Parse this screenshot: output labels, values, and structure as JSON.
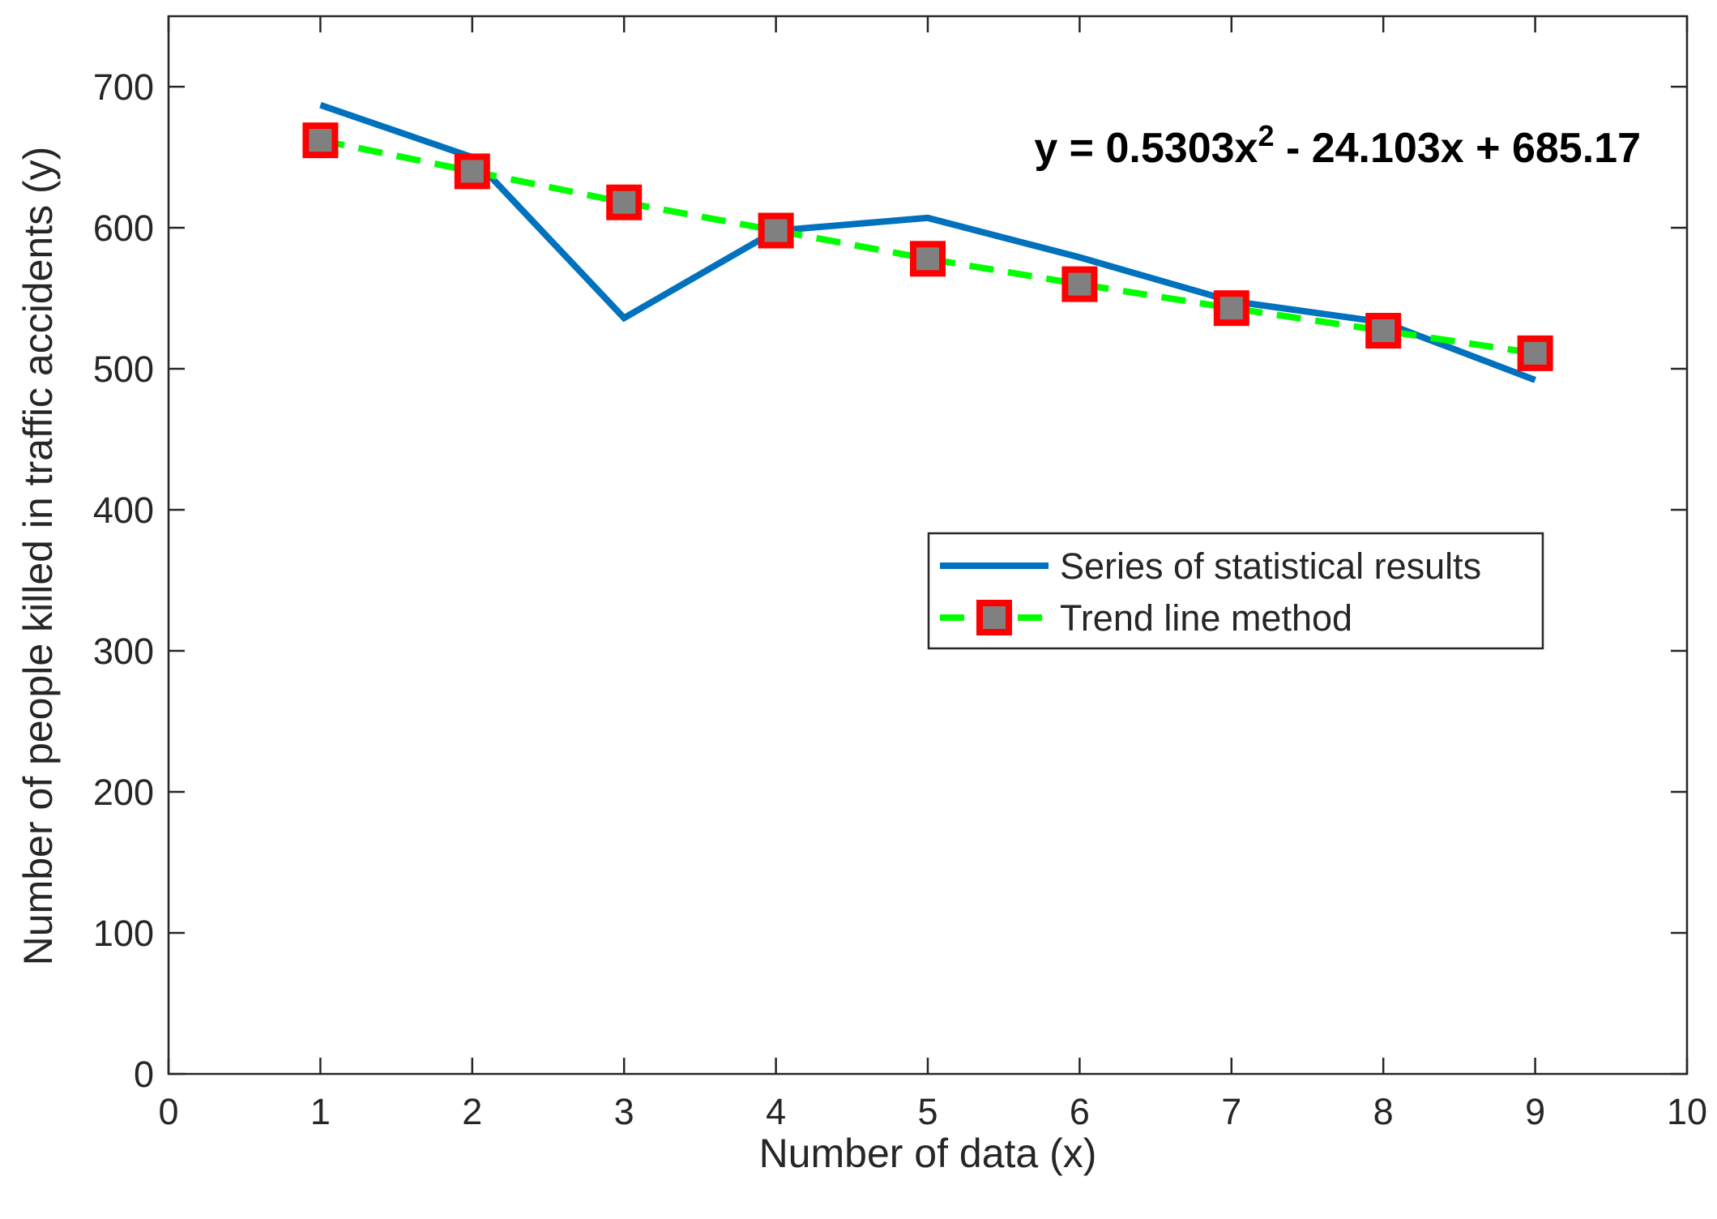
{
  "chart_data": {
    "type": "line",
    "title": "",
    "xlabel": "Number of data (x)",
    "ylabel": "Number of people killed in traffic accidents (y)",
    "xlim": [
      0,
      10
    ],
    "ylim": [
      0,
      750
    ],
    "xticks": [
      0,
      1,
      2,
      3,
      4,
      5,
      6,
      7,
      8,
      9,
      10
    ],
    "yticks": [
      0,
      100,
      200,
      300,
      400,
      500,
      600,
      700
    ],
    "grid": false,
    "legend_position": "center-right",
    "annotation": {
      "prefix": "y = 0.5303x",
      "superscript": "2",
      "suffix": " - 24.103x + 685.17"
    },
    "series": [
      {
        "name": "Series of statistical results",
        "x": [
          1,
          2,
          3,
          4,
          5,
          6,
          7,
          8,
          9
        ],
        "values": [
          687,
          650,
          536,
          598,
          607,
          579,
          548,
          533,
          492
        ],
        "color": "#0072BD",
        "style": "solid",
        "marker": "none"
      },
      {
        "name": "Trend line method",
        "x": [
          1,
          2,
          3,
          4,
          5,
          6,
          7,
          8,
          9
        ],
        "values": [
          662,
          640,
          618,
          598,
          578,
          560,
          543,
          527,
          511
        ],
        "color": "#00FF00",
        "style": "dashed",
        "marker": "square",
        "marker_edge": "#FF0000",
        "marker_face": "#808080"
      }
    ]
  }
}
